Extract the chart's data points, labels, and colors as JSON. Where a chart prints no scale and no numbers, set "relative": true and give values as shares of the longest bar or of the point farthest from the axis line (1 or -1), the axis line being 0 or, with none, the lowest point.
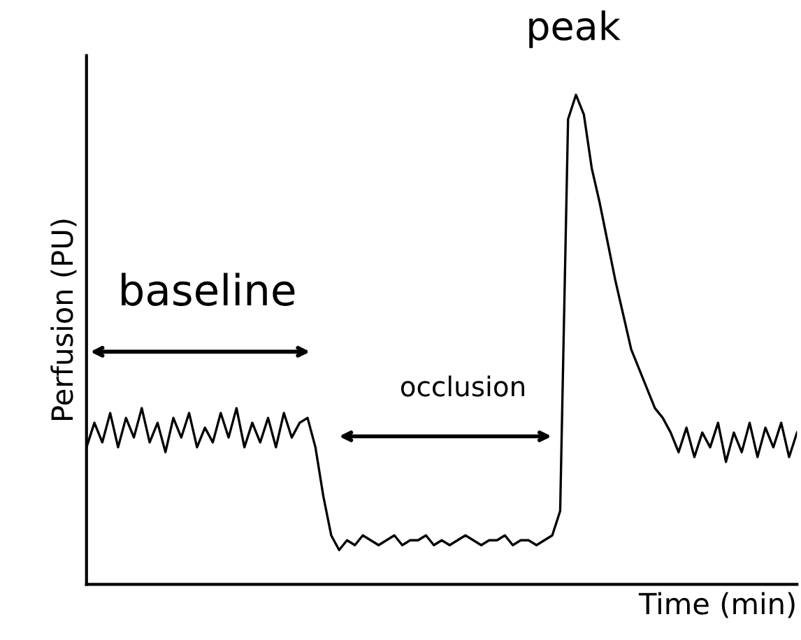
{
  "chart_data": {
    "type": "line",
    "relative": true,
    "ylabel": "Perfusion (PU)",
    "xlabel": "Time (min)",
    "categories": [
      null,
      null,
      null,
      null,
      null,
      null,
      null,
      null,
      null,
      null,
      null,
      null,
      null,
      null,
      null,
      null,
      null,
      null,
      null,
      null,
      null,
      null,
      null,
      null,
      null,
      null,
      null,
      null,
      null,
      null,
      null,
      null,
      null,
      null,
      null,
      null,
      null,
      null,
      null,
      null,
      null,
      null,
      null,
      null,
      null,
      null,
      null,
      null,
      null,
      null,
      null,
      null,
      null,
      null,
      null,
      null,
      null,
      null,
      null,
      null,
      null,
      null,
      null,
      null,
      null,
      null,
      null,
      null,
      null,
      null,
      null,
      null,
      null,
      null,
      null,
      null,
      null,
      null,
      null,
      null,
      null,
      null,
      null,
      null,
      null,
      null,
      null,
      null,
      null,
      null,
      null
    ],
    "series": [
      {
        "color": "#000000",
        "values": [
          0.28,
          0.33,
          0.29,
          0.35,
          0.28,
          0.34,
          0.3,
          0.36,
          0.29,
          0.33,
          0.27,
          0.34,
          0.3,
          0.35,
          0.28,
          0.32,
          0.29,
          0.35,
          0.3,
          0.36,
          0.28,
          0.33,
          0.29,
          0.34,
          0.28,
          0.35,
          0.3,
          0.33,
          0.34,
          0.28,
          0.18,
          0.1,
          0.07,
          0.09,
          0.08,
          0.1,
          0.09,
          0.08,
          0.09,
          0.1,
          0.08,
          0.09,
          0.09,
          0.1,
          0.08,
          0.09,
          0.08,
          0.09,
          0.1,
          0.09,
          0.08,
          0.09,
          0.09,
          0.1,
          0.08,
          0.09,
          0.09,
          0.08,
          0.09,
          0.1,
          0.15,
          0.95,
          1.0,
          0.96,
          0.85,
          0.78,
          0.7,
          0.62,
          0.55,
          0.48,
          0.44,
          0.4,
          0.36,
          0.34,
          0.31,
          0.27,
          0.32,
          0.26,
          0.31,
          0.28,
          0.33,
          0.25,
          0.31,
          0.27,
          0.33,
          0.26,
          0.32,
          0.28,
          0.33,
          0.26,
          0.31
        ]
      }
    ],
    "annotations": [
      "baseline",
      "occlusion",
      "peak"
    ],
    "legend": false,
    "marker": "none",
    "line_style": "solid"
  }
}
